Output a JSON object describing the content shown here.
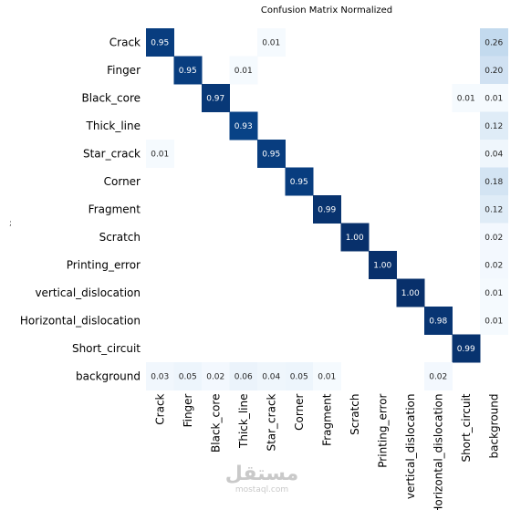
{
  "chart_data": {
    "type": "heatmap",
    "title": "Confusion Matrix Normalized",
    "row_labels": [
      "Crack",
      "Finger",
      "Black_core",
      "Thick_line",
      "Star_crack",
      "Corner",
      "Fragment",
      "Scratch",
      "Printing_error",
      "vertical_dislocation",
      "Horizontal_dislocation",
      "Short_circuit",
      "background"
    ],
    "col_labels": [
      "Crack",
      "Finger",
      "Black_core",
      "Thick_line",
      "Star_crack",
      "Corner",
      "Fragment",
      "Scratch",
      "Printing_error",
      "vertical_dislocation",
      "Horizontal_dislocation",
      "Short_circuit",
      "background"
    ],
    "values": [
      [
        0.95,
        null,
        null,
        null,
        0.01,
        null,
        null,
        null,
        null,
        null,
        null,
        null,
        0.26
      ],
      [
        null,
        0.95,
        null,
        0.01,
        null,
        null,
        null,
        null,
        null,
        null,
        null,
        null,
        0.2
      ],
      [
        null,
        null,
        0.97,
        null,
        null,
        null,
        null,
        null,
        null,
        null,
        null,
        0.01,
        0.01
      ],
      [
        null,
        null,
        null,
        0.93,
        null,
        null,
        null,
        null,
        null,
        null,
        null,
        null,
        0.12
      ],
      [
        0.01,
        null,
        null,
        null,
        0.95,
        null,
        null,
        null,
        null,
        null,
        null,
        null,
        0.04
      ],
      [
        null,
        null,
        null,
        null,
        null,
        0.95,
        null,
        null,
        null,
        null,
        null,
        null,
        0.18
      ],
      [
        null,
        null,
        null,
        null,
        null,
        null,
        0.99,
        null,
        null,
        null,
        null,
        null,
        0.12
      ],
      [
        null,
        null,
        null,
        null,
        null,
        null,
        null,
        1.0,
        null,
        null,
        null,
        null,
        0.02
      ],
      [
        null,
        null,
        null,
        null,
        null,
        null,
        null,
        null,
        1.0,
        null,
        null,
        null,
        0.02
      ],
      [
        null,
        null,
        null,
        null,
        null,
        null,
        null,
        null,
        null,
        1.0,
        null,
        null,
        0.01
      ],
      [
        null,
        null,
        null,
        null,
        null,
        null,
        null,
        null,
        null,
        null,
        0.98,
        null,
        0.01
      ],
      [
        null,
        null,
        null,
        null,
        null,
        null,
        null,
        null,
        null,
        null,
        null,
        0.99,
        null
      ],
      [
        0.03,
        0.05,
        0.02,
        0.06,
        0.04,
        0.05,
        0.01,
        null,
        null,
        null,
        0.02,
        null,
        null
      ]
    ],
    "value_range": [
      0,
      1
    ],
    "colormap": "Blues",
    "low_color": "#f7fbff",
    "high_color": "#08306b"
  },
  "watermark": {
    "main": "مستقل",
    "sub": "mostaql.com"
  },
  "stray_mark": ";"
}
